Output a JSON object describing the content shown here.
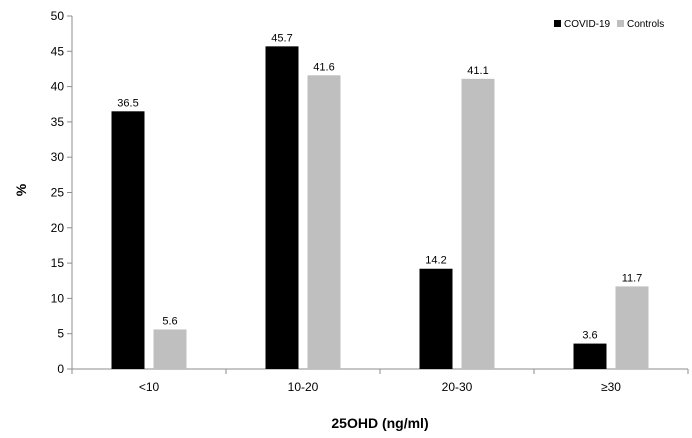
{
  "chart_data": {
    "type": "bar",
    "title": "",
    "xlabel": "25OHD (ng/ml)",
    "ylabel": "%",
    "ylim": [
      0,
      50
    ],
    "yticks": [
      0,
      5,
      10,
      15,
      20,
      25,
      30,
      35,
      40,
      45,
      50
    ],
    "grid": false,
    "legend_position": "top-right",
    "categories": [
      "<10",
      "10-20",
      "20-30",
      "≥30"
    ],
    "series": [
      {
        "name": "COVID-19",
        "color": "#000000",
        "values": [
          36.5,
          45.7,
          14.2,
          3.6
        ]
      },
      {
        "name": "Controls",
        "color": "#bfbfbf",
        "values": [
          5.6,
          41.6,
          41.1,
          11.7
        ]
      }
    ]
  }
}
